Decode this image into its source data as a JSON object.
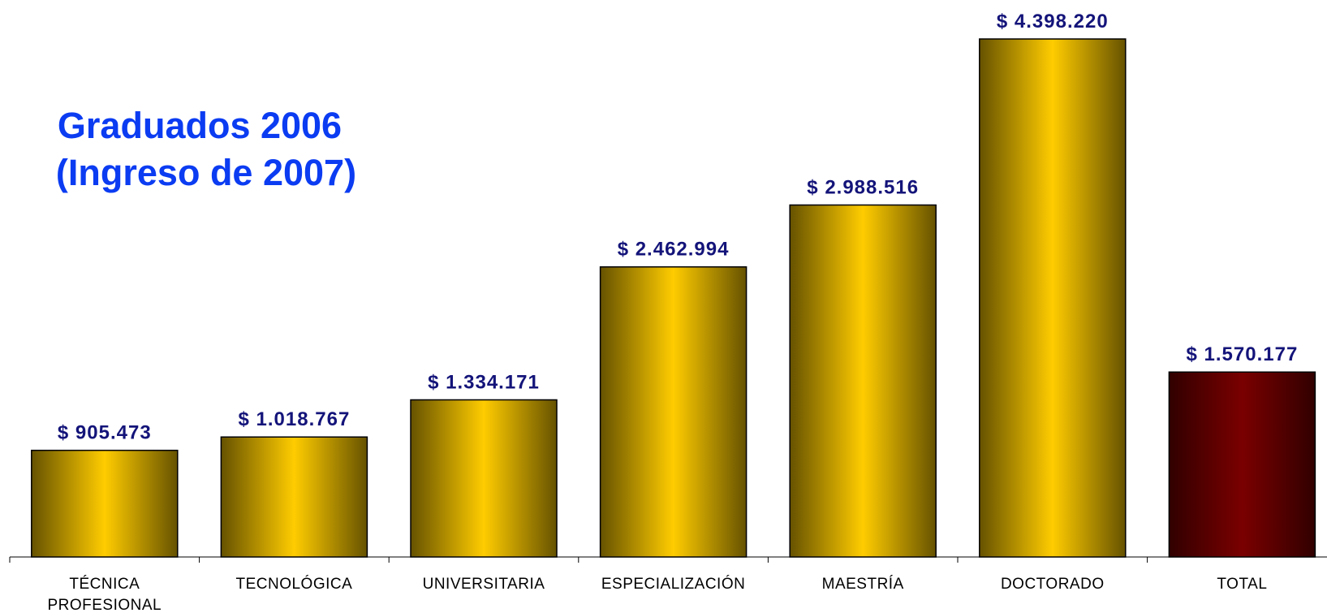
{
  "chart_data": {
    "type": "bar",
    "title": "Graduados 2006",
    "subtitle": "(Ingreso de 2007)",
    "categories": [
      "TÉCNICA PROFESIONAL",
      "TECNOLÓGICA",
      "UNIVERSITARIA",
      "ESPECIALIZACIÓN",
      "MAESTRÍA",
      "DOCTORADO",
      "TOTAL"
    ],
    "values": [
      905473,
      1018767,
      1334171,
      2462994,
      2988516,
      4398220,
      1570177
    ],
    "value_labels": [
      "$ 905.473",
      "$ 1.018.767",
      "$ 1.334.171",
      "$ 2.462.994",
      "$ 2.988.516",
      "$ 4.398.220",
      "$ 1.570.177"
    ],
    "colors": [
      "#ffcc00",
      "#ffcc00",
      "#ffcc00",
      "#ffcc00",
      "#ffcc00",
      "#ffcc00",
      "#7a0000"
    ]
  }
}
